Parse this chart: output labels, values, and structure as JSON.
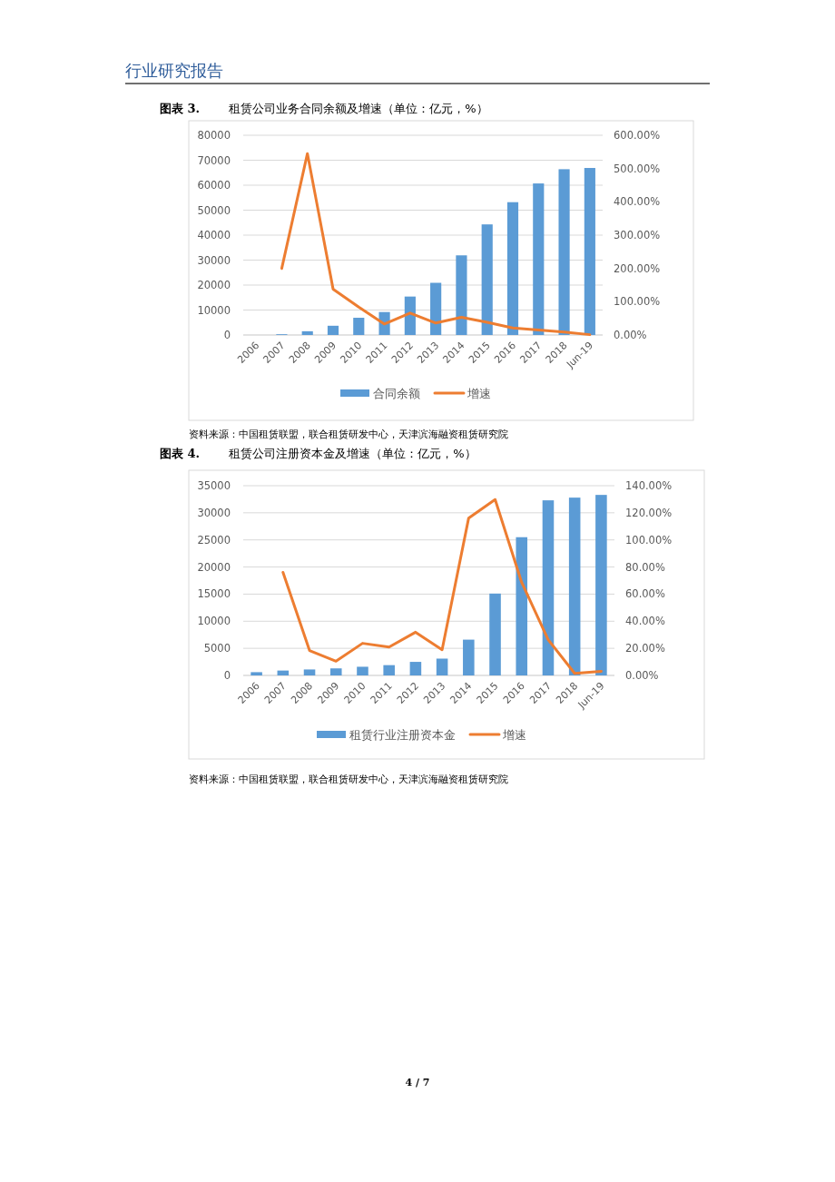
{
  "chart_data": [
    {
      "type": "bar",
      "title": "**图表 3.** 租赁公司业务合同余额及增速（单位：亿元，%）",
      "categories": [
        "2006",
        "2007",
        "2008",
        "2009",
        "2010",
        "2011",
        "2012",
        "2013",
        "2014",
        "2015",
        "2016",
        "2017",
        "2018",
        "Jun-19"
      ],
      "series": [
        {
          "name": "合同余额",
          "color": "#5b9bd5",
          "values": [
            null,
            300,
            1500,
            3700,
            6900,
            9200,
            15400,
            20900,
            31900,
            44300,
            53200,
            60700,
            66400,
            66900
          ]
        },
        {
          "name": "增速",
          "type": "line",
          "axis": "y2",
          "color": "#ed7d31",
          "values": [
            null,
            200,
            545,
            138,
            84,
            33,
            66,
            36,
            53,
            38,
            21,
            15,
            9,
            1
          ]
        }
      ],
      "ylim": [
        0,
        80000
      ],
      "yticks": [
        0,
        10000,
        20000,
        30000,
        40000,
        50000,
        60000,
        70000,
        80000
      ],
      "y2lim": [
        0,
        600
      ],
      "y2ticks": [
        {
          "value": 0,
          "label": "0.00%"
        },
        {
          "value": 100,
          "label": "100.00%"
        },
        {
          "value": 200,
          "label": "200.00%"
        },
        {
          "value": 300,
          "label": "300.00%"
        },
        {
          "value": 400,
          "label": "400.00%"
        },
        {
          "value": 500,
          "label": "500.00%"
        },
        {
          "value": 600,
          "label": "600.00%"
        }
      ],
      "grid": "y",
      "legend": "bottom",
      "annotations": [
        "资料来源：中国租赁联盟，联合租赁研发中心，天津滨海融资租赁研究院",
        "行业研究报告"
      ]
    },
    {
      "type": "bar",
      "title": "**图表 4.** 租赁公司注册资本金及增速（单位：亿元，%）",
      "categories": [
        "2006",
        "2007",
        "2008",
        "2009",
        "2010",
        "2011",
        "2012",
        "2013",
        "2014",
        "2015",
        "2016",
        "2017",
        "2018",
        "Jun-19"
      ],
      "series": [
        {
          "name": "租赁行业注册资本金",
          "color": "#5b9bd5",
          "values": [
            600,
            900,
            1100,
            1300,
            1600,
            1900,
            2500,
            3100,
            6600,
            15100,
            25500,
            32300,
            32800,
            33300
          ]
        },
        {
          "name": "增速",
          "type": "line",
          "axis": "y2",
          "color": "#ed7d31",
          "values": [
            null,
            76.0,
            18.4,
            10.5,
            23.7,
            20.9,
            31.9,
            18.9,
            116,
            129.8,
            68.7,
            26.4,
            1.5,
            3.0
          ]
        }
      ],
      "ylim": [
        0,
        35000
      ],
      "yticks": [
        0,
        5000,
        10000,
        15000,
        20000,
        25000,
        30000,
        35000
      ],
      "y2lim": [
        0,
        140
      ],
      "y2ticks": [
        {
          "value": 0,
          "label": "0.00%"
        },
        {
          "value": 20,
          "label": "20.00%"
        },
        {
          "value": 40,
          "label": "40.00%"
        },
        {
          "value": 60,
          "label": "60.00%"
        },
        {
          "value": 80,
          "label": "80.00%"
        },
        {
          "value": 100,
          "label": "100.00%"
        },
        {
          "value": 120,
          "label": "120.00%"
        },
        {
          "value": 140,
          "label": "140.00%"
        }
      ],
      "grid": "y",
      "legend": "bottom",
      "annotations": [
        "资料来源：中国租赁联盟，联合租赁研发中心，天津滨海融资租赁研究院",
        "4 / 7"
      ]
    }
  ]
}
